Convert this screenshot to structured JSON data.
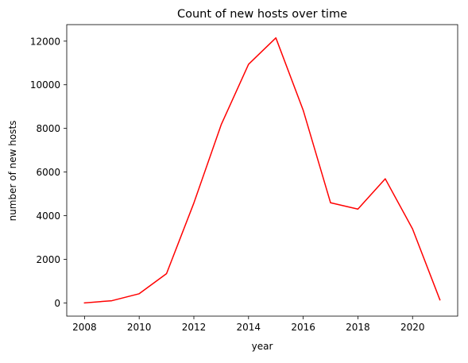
{
  "chart_data": {
    "type": "line",
    "title": "Count of new hosts over time",
    "xlabel": "year",
    "ylabel": "number of new hosts",
    "x": [
      2008,
      2009,
      2010,
      2011,
      2012,
      2013,
      2014,
      2015,
      2016,
      2017,
      2018,
      2019,
      2020,
      2021
    ],
    "series": [
      {
        "values": [
          0,
          100,
          420,
          1340,
          4580,
          8170,
          10940,
          12150,
          8830,
          4590,
          4300,
          5690,
          3390,
          140
        ],
        "color": "#ff0000"
      }
    ],
    "xlim": [
      2007.35,
      2021.65
    ],
    "ylim": [
      -607.5,
      12757.5
    ],
    "xticks": [
      2008,
      2010,
      2012,
      2014,
      2016,
      2018,
      2020
    ],
    "yticks": [
      0,
      2000,
      4000,
      6000,
      8000,
      10000,
      12000
    ],
    "grid": false,
    "legend": false
  }
}
